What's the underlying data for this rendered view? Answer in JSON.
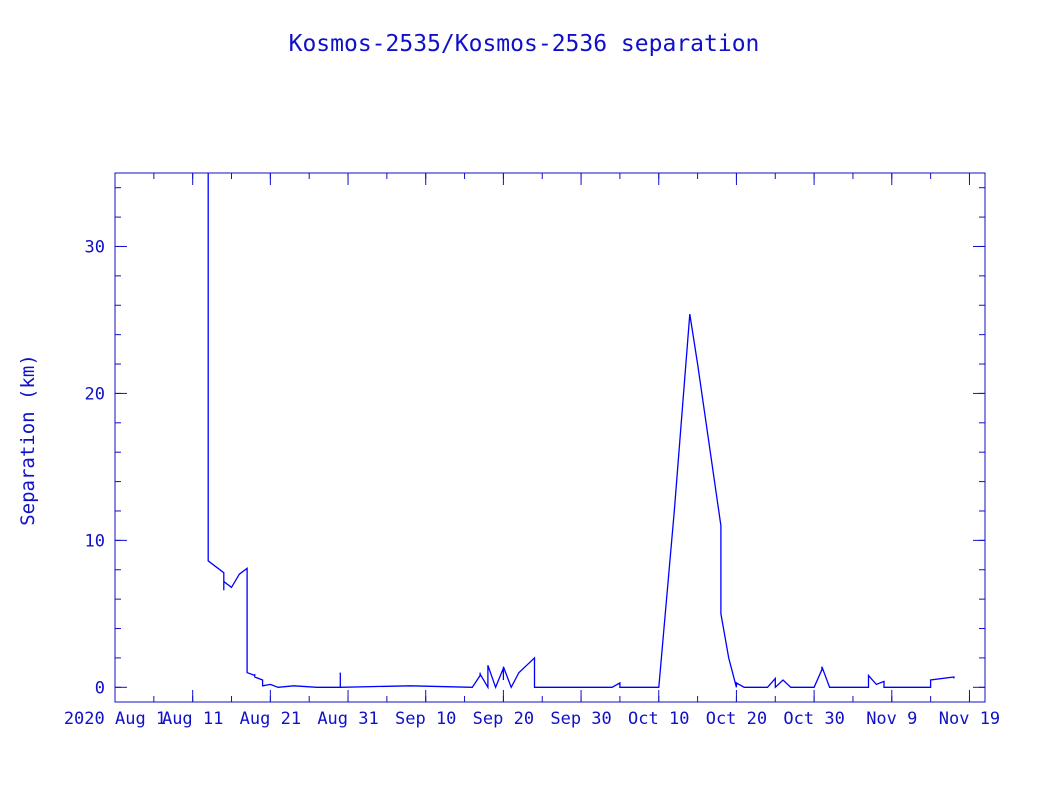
{
  "chart_data": {
    "type": "line",
    "title": "Kosmos-2535/Kosmos-2536 separation",
    "xlabel": "",
    "ylabel": "Separation (km)",
    "xlim": [
      "2020-08-01",
      "2020-11-21"
    ],
    "ylim": [
      -1,
      35
    ],
    "x_ticks": [
      {
        "label": "2020 Aug 1",
        "date": "2020-08-01"
      },
      {
        "label": "Aug 11",
        "date": "2020-08-11"
      },
      {
        "label": "Aug 21",
        "date": "2020-08-21"
      },
      {
        "label": "Aug 31",
        "date": "2020-08-31"
      },
      {
        "label": "Sep 10",
        "date": "2020-09-10"
      },
      {
        "label": "Sep 20",
        "date": "2020-09-20"
      },
      {
        "label": "Sep 30",
        "date": "2020-09-30"
      },
      {
        "label": "Oct 10",
        "date": "2020-10-10"
      },
      {
        "label": "Oct 20",
        "date": "2020-10-20"
      },
      {
        "label": "Oct 30",
        "date": "2020-10-30"
      },
      {
        "label": "Nov 9",
        "date": "2020-11-09"
      },
      {
        "label": "Nov 19",
        "date": "2020-11-19"
      }
    ],
    "y_ticks": [
      0,
      10,
      20,
      30
    ],
    "grid": false,
    "series": [
      {
        "color": "#0000ff",
        "x": [
          "2020-08-13",
          "2020-08-13",
          "2020-08-13",
          "2020-08-13",
          "2020-08-13",
          "2020-08-14",
          "2020-08-15",
          "2020-08-15",
          "2020-08-15",
          "2020-08-15",
          "2020-08-16",
          "2020-08-17",
          "2020-08-18",
          "2020-08-18",
          "2020-08-19",
          "2020-08-19",
          "2020-08-19",
          "2020-08-20",
          "2020-08-20",
          "2020-08-21",
          "2020-08-22",
          "2020-08-24",
          "2020-08-27",
          "2020-08-30",
          "2020-08-30",
          "2020-08-30",
          "2020-09-08",
          "2020-09-16",
          "2020-09-17",
          "2020-09-17",
          "2020-09-17",
          "2020-09-18",
          "2020-09-18",
          "2020-09-18",
          "2020-09-19",
          "2020-09-19",
          "2020-09-20",
          "2020-09-20",
          "2020-09-20",
          "2020-09-21",
          "2020-09-21",
          "2020-09-22",
          "2020-09-23",
          "2020-09-24",
          "2020-09-24",
          "2020-09-26",
          "2020-10-04",
          "2020-10-05",
          "2020-10-05",
          "2020-10-09",
          "2020-10-10",
          "2020-10-12",
          "2020-10-14",
          "2020-10-15",
          "2020-10-18",
          "2020-10-18",
          "2020-10-18",
          "2020-10-19",
          "2020-10-20",
          "2020-10-20",
          "2020-10-21",
          "2020-10-24",
          "2020-10-25",
          "2020-10-25",
          "2020-10-26",
          "2020-10-27",
          "2020-10-27",
          "2020-10-30",
          "2020-10-31",
          "2020-10-31",
          "2020-11-01",
          "2020-11-06",
          "2020-11-06",
          "2020-11-07",
          "2020-11-08",
          "2020-11-08",
          "2020-11-14",
          "2020-11-14",
          "2020-11-17",
          "2020-11-17",
          "2020-11-17"
        ],
        "y": [
          35,
          31,
          20,
          9,
          8.6,
          8.2,
          7.8,
          6.6,
          7.6,
          7.2,
          6.8,
          7.7,
          8.1,
          1,
          0.8,
          0.9,
          0.7,
          0.5,
          0.1,
          0.2,
          0,
          0.1,
          0,
          0,
          1,
          0,
          0.1,
          0,
          0.8,
          1,
          0.9,
          0,
          0,
          1.5,
          0,
          0,
          1.3,
          0.5,
          1.4,
          0,
          0,
          1,
          1.5,
          2,
          0,
          0,
          0,
          0.3,
          0,
          0,
          0,
          12,
          25.4,
          22,
          11,
          7,
          5,
          2,
          0,
          0.3,
          0,
          0,
          0.6,
          0,
          0.5,
          0,
          0,
          0,
          1.2,
          1.4,
          0,
          0,
          0.8,
          0.2,
          0.4,
          0,
          0,
          0.5,
          0.7,
          0.6,
          0.7
        ]
      }
    ]
  }
}
